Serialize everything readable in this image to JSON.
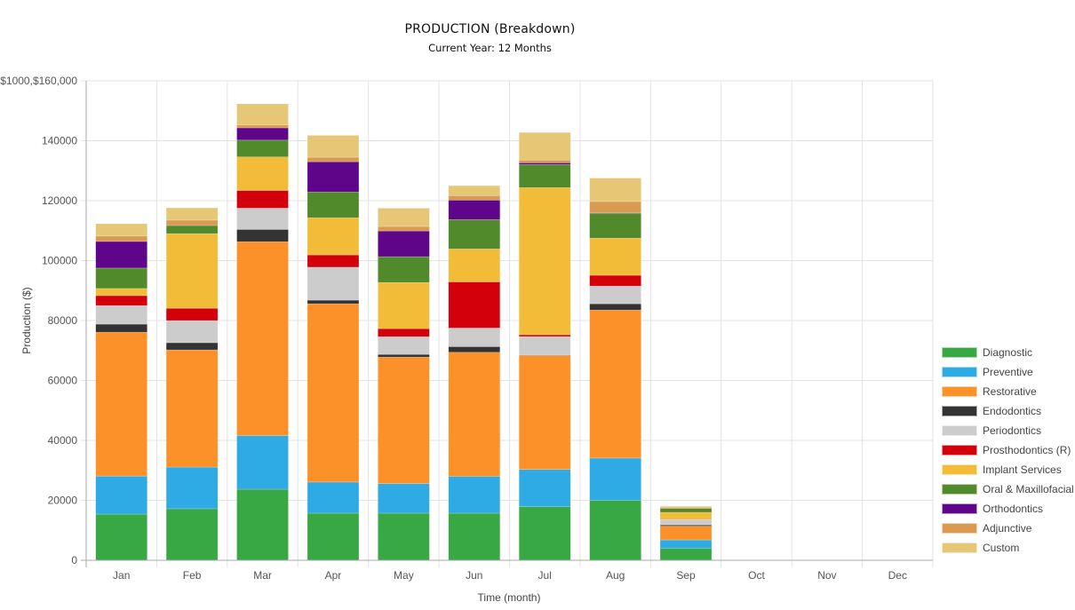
{
  "chart_data": {
    "type": "bar",
    "stacked": true,
    "title": "PRODUCTION (Breakdown)",
    "subtitle": "Current Year: 12 Months",
    "xlabel": "Time (month)",
    "ylabel": "Production ($)",
    "y_top_label": "$1000,$160,000",
    "ylim": [
      0,
      160000
    ],
    "yticks": [
      0,
      20000,
      40000,
      60000,
      80000,
      100000,
      120000,
      140000
    ],
    "grid": true,
    "legend_position": "right",
    "categories": [
      "Jan",
      "Feb",
      "Mar",
      "Apr",
      "May",
      "Jun",
      "Jul",
      "Aug",
      "Sep",
      "Oct",
      "Nov",
      "Dec"
    ],
    "series": [
      {
        "name": "Diagnostic",
        "color": "#37a843",
        "values": [
          15400,
          17200,
          23700,
          15700,
          15700,
          15700,
          17900,
          20000,
          4000,
          0,
          0,
          0
        ]
      },
      {
        "name": "Preventive",
        "color": "#2eaae4",
        "values": [
          12700,
          13900,
          17900,
          10400,
          9900,
          12300,
          12400,
          14100,
          2800,
          0,
          0,
          0
        ]
      },
      {
        "name": "Restorative",
        "color": "#fd9129",
        "values": [
          48000,
          39100,
          64700,
          59500,
          42200,
          41400,
          38000,
          49400,
          4600,
          0,
          0,
          0
        ]
      },
      {
        "name": "Endodontics",
        "color": "#333333",
        "values": [
          2700,
          2400,
          4100,
          1200,
          900,
          1900,
          150,
          2100,
          400,
          0,
          0,
          0
        ]
      },
      {
        "name": "Periodontics",
        "color": "#cccccc",
        "values": [
          6200,
          7400,
          7100,
          11000,
          5900,
          6200,
          6200,
          5900,
          1800,
          0,
          0,
          0
        ]
      },
      {
        "name": "Prosthodontics (R)",
        "color": "#d3000b",
        "values": [
          3300,
          4100,
          5900,
          4100,
          2700,
          15400,
          600,
          3600,
          0,
          0,
          0,
          0
        ]
      },
      {
        "name": "Implant Services",
        "color": "#f3bc38",
        "values": [
          2400,
          24900,
          11200,
          12400,
          15400,
          11000,
          49100,
          12400,
          2400,
          0,
          0,
          0
        ]
      },
      {
        "name": "Oral & Maxillofacial",
        "color": "#508a2a",
        "values": [
          6800,
          2700,
          5600,
          8600,
          8600,
          9800,
          7700,
          8300,
          1300,
          0,
          0,
          0
        ]
      },
      {
        "name": "Orthodontics",
        "color": "#5f0589",
        "values": [
          8900,
          0,
          4100,
          10100,
          8600,
          6500,
          600,
          150,
          0,
          0,
          0,
          0
        ]
      },
      {
        "name": "Adjunctive",
        "color": "#d89b51",
        "values": [
          1800,
          1800,
          1000,
          1500,
          1500,
          1500,
          900,
          3800,
          400,
          0,
          0,
          0
        ]
      },
      {
        "name": "Custom",
        "color": "#e6c776",
        "values": [
          4100,
          4100,
          7000,
          7300,
          6100,
          3300,
          9200,
          7800,
          300,
          0,
          0,
          0
        ]
      }
    ]
  }
}
